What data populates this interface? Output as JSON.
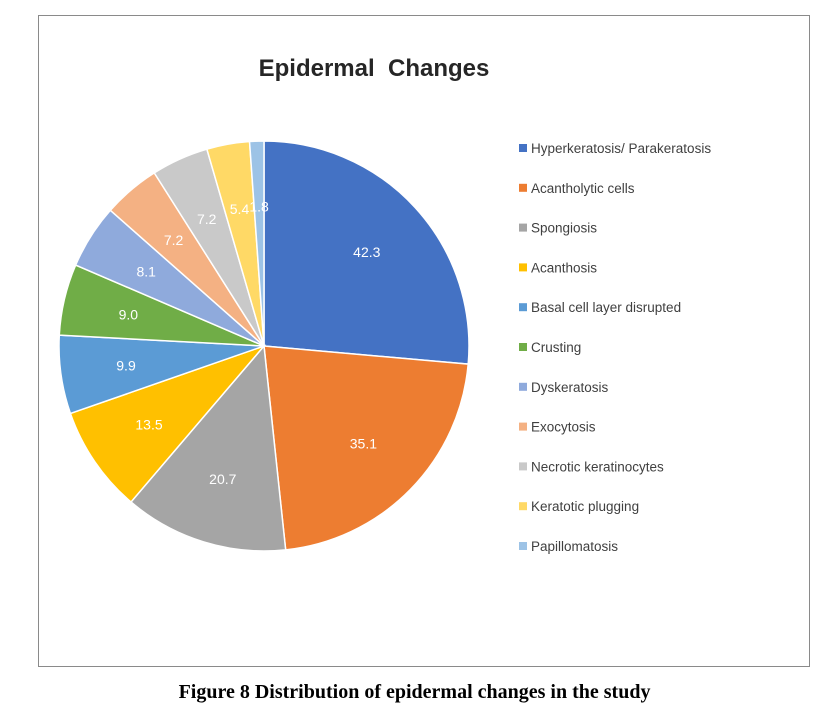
{
  "caption": "Figure 8 Distribution of epidermal changes in the study",
  "chart_data": {
    "type": "pie",
    "title": "Epidermal  Changes",
    "legend_position": "right",
    "slices": [
      {
        "label": "Hyperkeratosis/ Parakeratosis",
        "value": 42.3,
        "display": "42.3",
        "color": "#4472C4"
      },
      {
        "label": "Acantholytic cells",
        "value": 35.1,
        "display": "35.1",
        "color": "#ED7D31"
      },
      {
        "label": "Spongiosis",
        "value": 20.7,
        "display": "20.7",
        "color": "#A5A5A5"
      },
      {
        "label": "Acanthosis",
        "value": 13.5,
        "display": "13.5",
        "color": "#FFC000"
      },
      {
        "label": "Basal cell layer disrupted",
        "value": 9.9,
        "display": "9.9",
        "color": "#5B9BD5"
      },
      {
        "label": "Crusting",
        "value": 9.0,
        "display": "9.0",
        "color": "#70AD47"
      },
      {
        "label": "Dyskeratosis",
        "value": 8.1,
        "display": "8.1",
        "color": "#8FAADC"
      },
      {
        "label": "Exocytosis",
        "value": 7.2,
        "display": "7.2",
        "color": "#F4B183"
      },
      {
        "label": "Necrotic keratinocytes",
        "value": 7.2,
        "display": "7.2",
        "color": "#C9C9C9"
      },
      {
        "label": "Keratotic plugging",
        "value": 5.4,
        "display": "5.4",
        "color": "#FFD966"
      },
      {
        "label": "Papillomatosis",
        "value": 1.8,
        "display": "1.8",
        "color": "#9DC3E6"
      }
    ]
  }
}
